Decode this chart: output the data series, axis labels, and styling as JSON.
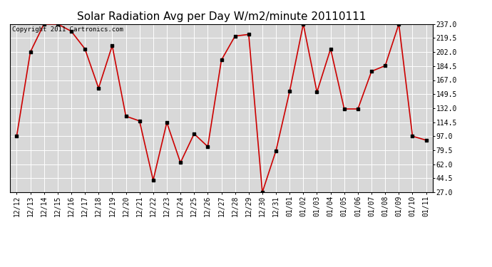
{
  "title": "Solar Radiation Avg per Day W/m2/minute 20110111",
  "copyright": "Copyright 2011 Cartronics.com",
  "labels": [
    "12/12",
    "12/13",
    "12/14",
    "12/15",
    "12/16",
    "12/17",
    "12/18",
    "12/19",
    "12/20",
    "12/21",
    "12/22",
    "12/23",
    "12/24",
    "12/25",
    "12/26",
    "12/27",
    "12/28",
    "12/29",
    "12/30",
    "12/31",
    "01/01",
    "01/02",
    "01/03",
    "01/04",
    "01/05",
    "01/06",
    "01/07",
    "01/08",
    "01/09",
    "01/10",
    "01/11"
  ],
  "values": [
    97,
    202,
    237,
    237,
    228,
    206,
    157,
    210,
    122,
    116,
    42,
    114,
    64,
    100,
    84,
    192,
    222,
    224,
    27,
    79,
    153,
    237,
    152,
    206,
    131,
    131,
    178,
    185,
    237,
    97,
    92
  ],
  "line_color": "#cc0000",
  "marker_color": "#000000",
  "plot_bg_color": "#d8d8d8",
  "fig_bg_color": "#ffffff",
  "grid_color": "#ffffff",
  "ylim_min": 27.0,
  "ylim_max": 237.0,
  "yticks": [
    27.0,
    44.5,
    62.0,
    79.5,
    97.0,
    114.5,
    132.0,
    149.5,
    167.0,
    184.5,
    202.0,
    219.5,
    237.0
  ],
  "title_fontsize": 11,
  "tick_fontsize": 7,
  "copyright_fontsize": 6.5
}
